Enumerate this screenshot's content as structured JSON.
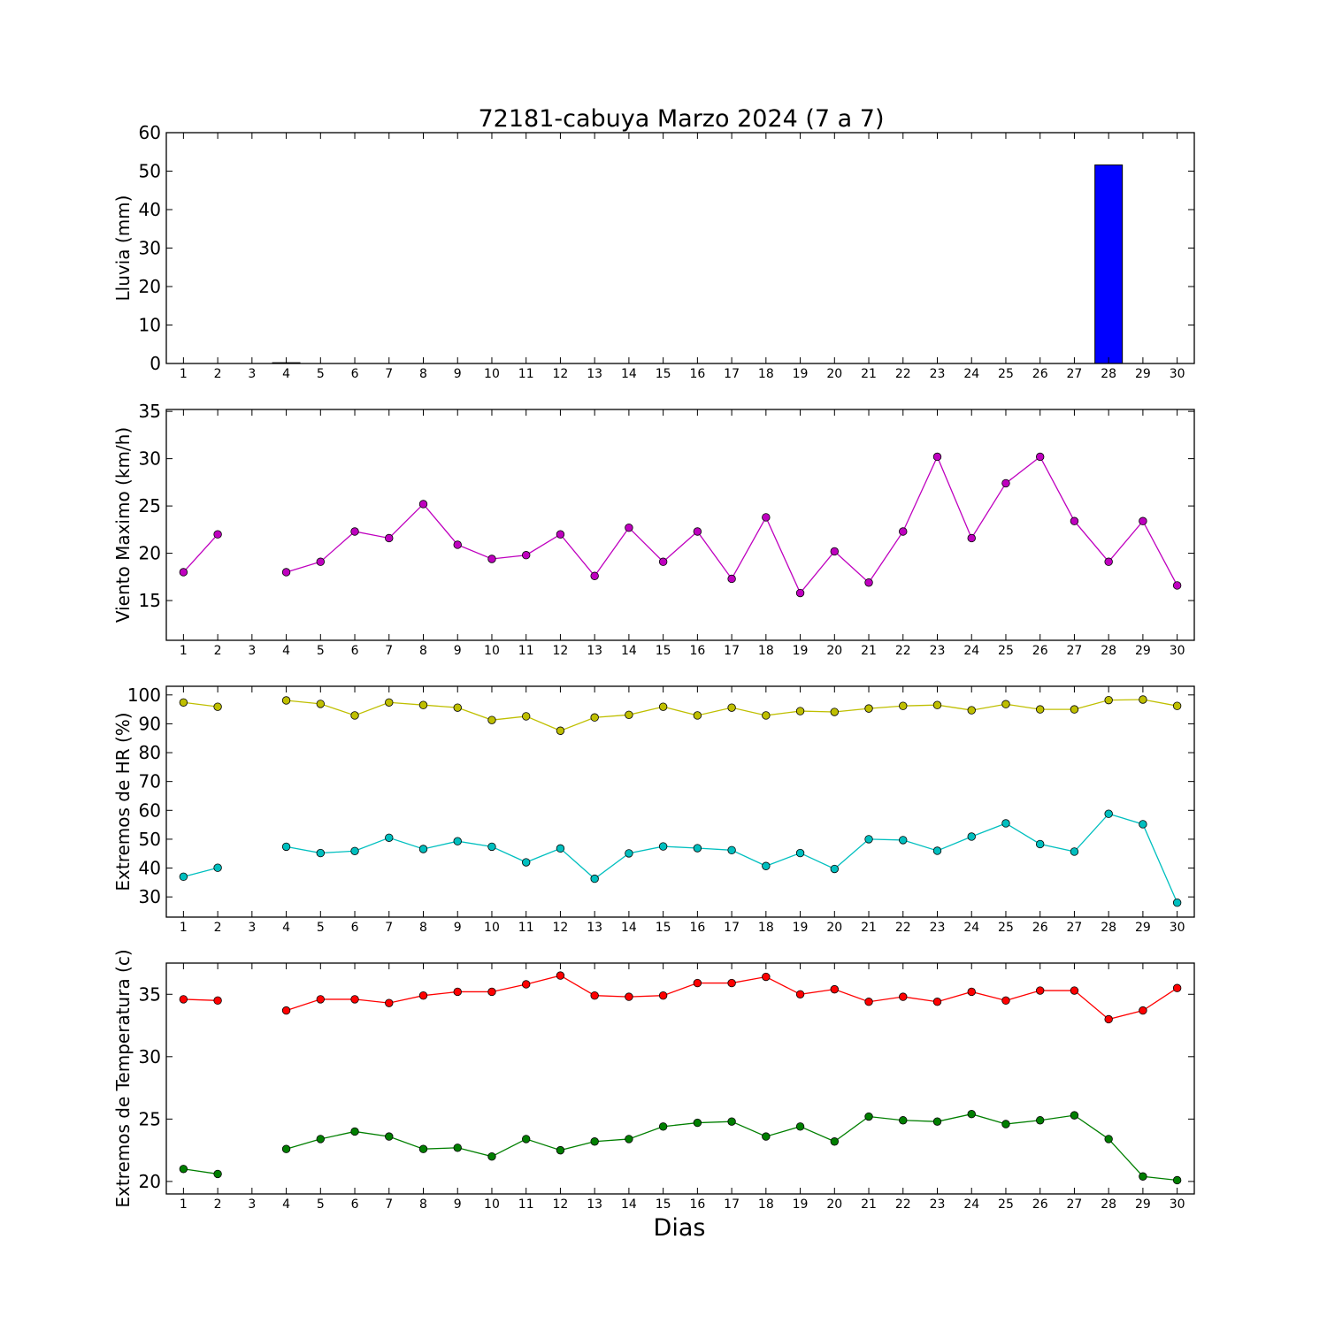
{
  "title": "72181-cabuya Marzo 2024  (7 a 7)",
  "xlabel": "Dias",
  "chart_data": [
    {
      "type": "bar",
      "ylabel": "Lluvia (mm)",
      "ylim": [
        0,
        60
      ],
      "yticks": [
        0,
        10,
        20,
        30,
        40,
        50,
        60
      ],
      "x": [
        1,
        2,
        3,
        4,
        5,
        6,
        7,
        8,
        9,
        10,
        11,
        12,
        13,
        14,
        15,
        16,
        17,
        18,
        19,
        20,
        21,
        22,
        23,
        24,
        25,
        26,
        27,
        28,
        29,
        30
      ],
      "values": [
        0,
        0,
        null,
        0.2,
        0,
        0,
        0,
        0,
        0,
        0,
        0,
        0,
        0,
        0,
        0,
        0,
        0,
        0,
        0,
        0,
        0,
        0,
        0,
        0,
        0,
        0,
        0,
        51.6,
        0,
        0
      ],
      "color": "#0000ff",
      "grid": false
    },
    {
      "type": "line",
      "ylabel": "Viento Maximo (km/h)",
      "ylim": [
        10.8,
        35.2
      ],
      "yticks": [
        15,
        20,
        25,
        30,
        35
      ],
      "x": [
        1,
        2,
        3,
        4,
        5,
        6,
        7,
        8,
        9,
        10,
        11,
        12,
        13,
        14,
        15,
        16,
        17,
        18,
        19,
        20,
        21,
        22,
        23,
        24,
        25,
        26,
        27,
        28,
        29,
        30
      ],
      "series": [
        {
          "color": "#bf00bf",
          "values": [
            18.0,
            22.0,
            null,
            18.0,
            19.1,
            22.3,
            21.6,
            25.2,
            20.9,
            19.4,
            19.8,
            22.0,
            17.6,
            22.7,
            19.1,
            22.3,
            17.3,
            23.8,
            15.8,
            20.2,
            16.9,
            22.3,
            30.2,
            21.6,
            27.4,
            30.2,
            23.4,
            19.1,
            23.4,
            16.6
          ]
        }
      ],
      "grid": false
    },
    {
      "type": "line",
      "ylabel": "Extremos de HR (%)",
      "ylim": [
        23,
        103
      ],
      "yticks": [
        30,
        40,
        50,
        60,
        70,
        80,
        90,
        100
      ],
      "x": [
        1,
        2,
        3,
        4,
        5,
        6,
        7,
        8,
        9,
        10,
        11,
        12,
        13,
        14,
        15,
        16,
        17,
        18,
        19,
        20,
        21,
        22,
        23,
        24,
        25,
        26,
        27,
        28,
        29,
        30
      ],
      "series": [
        {
          "color": "#bfbf00",
          "values": [
            97.4,
            95.9,
            null,
            98.1,
            96.9,
            92.9,
            97.4,
            96.5,
            95.6,
            91.3,
            92.6,
            87.6,
            92.2,
            93.1,
            95.9,
            92.9,
            95.6,
            92.9,
            94.4,
            94.1,
            95.3,
            96.2,
            96.5,
            94.7,
            96.8,
            95.0,
            95.0,
            98.2,
            98.4,
            96.2
          ]
        },
        {
          "color": "#00bfbf",
          "values": [
            37.0,
            40.1,
            null,
            47.4,
            45.2,
            45.9,
            50.5,
            46.6,
            49.3,
            47.4,
            42.0,
            46.8,
            36.3,
            45.1,
            47.5,
            46.9,
            46.2,
            40.7,
            45.2,
            39.7,
            50.0,
            49.7,
            46.0,
            50.9,
            55.5,
            48.3,
            45.7,
            58.8,
            55.2,
            28.0
          ]
        }
      ],
      "grid": false
    },
    {
      "type": "line",
      "ylabel": "Extremos de Temperatura (c)",
      "ylim": [
        19.0,
        37.5
      ],
      "yticks": [
        20,
        25,
        30,
        35
      ],
      "x": [
        1,
        2,
        3,
        4,
        5,
        6,
        7,
        8,
        9,
        10,
        11,
        12,
        13,
        14,
        15,
        16,
        17,
        18,
        19,
        20,
        21,
        22,
        23,
        24,
        25,
        26,
        27,
        28,
        29,
        30
      ],
      "series": [
        {
          "color": "#ff0000",
          "values": [
            34.6,
            34.5,
            null,
            33.7,
            34.6,
            34.6,
            34.3,
            34.9,
            35.2,
            35.2,
            35.8,
            36.5,
            34.9,
            34.8,
            34.9,
            35.9,
            35.9,
            36.4,
            35.0,
            35.4,
            34.4,
            34.8,
            34.4,
            35.2,
            34.5,
            35.3,
            35.3,
            33.0,
            33.7,
            35.5
          ]
        },
        {
          "color": "#007f00",
          "values": [
            21.0,
            20.6,
            null,
            22.6,
            23.4,
            24.0,
            23.6,
            22.6,
            22.7,
            22.0,
            23.4,
            22.5,
            23.2,
            23.4,
            24.4,
            24.7,
            24.8,
            23.6,
            24.4,
            23.2,
            25.2,
            24.9,
            24.8,
            25.4,
            24.6,
            24.9,
            25.3,
            23.4,
            20.4,
            20.1
          ]
        }
      ],
      "grid": false
    }
  ]
}
